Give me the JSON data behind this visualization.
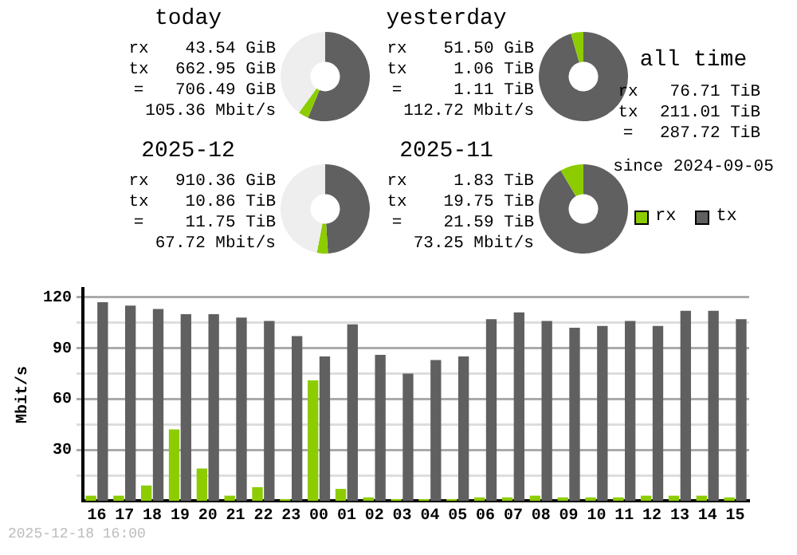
{
  "chart_data": [
    {
      "type": "donut",
      "title": "today",
      "categories": [
        null,
        null,
        null
      ],
      "values": [
        56.3,
        3.7,
        40
      ],
      "colors": [
        "#606060",
        "#8ccc00",
        "#eeeeee"
      ],
      "legend": false,
      "annotations": [
        "rx 43.54 GiB",
        "tx 662.95 GiB",
        "= 706.49 GiB",
        "105.36 Mbit/s"
      ]
    },
    {
      "type": "donut",
      "title": "yesterday",
      "categories": [
        null,
        null
      ],
      "values": [
        95.5,
        4.5
      ],
      "colors": [
        "#606060",
        "#8ccc00"
      ],
      "legend": false,
      "annotations": [
        "rx 51.50 GiB",
        "tx 1.06 TiB",
        "= 1.11 TiB",
        "112.72 Mbit/s"
      ]
    },
    {
      "type": "donut",
      "title": "2025-12",
      "categories": [
        null,
        null,
        null
      ],
      "values": [
        49,
        4,
        47
      ],
      "colors": [
        "#606060",
        "#8ccc00",
        "#eeeeee"
      ],
      "legend": false,
      "annotations": [
        "rx 910.36 GiB",
        "tx 10.86 TiB",
        "= 11.75 TiB",
        "67.72 Mbit/s"
      ]
    },
    {
      "type": "donut",
      "title": "2025-11",
      "categories": [
        null,
        null
      ],
      "values": [
        91.5,
        8.5
      ],
      "colors": [
        "#606060",
        "#8ccc00"
      ],
      "legend": false,
      "annotations": [
        "rx 1.83 TiB",
        "tx 19.75 TiB",
        "= 21.59 TiB",
        "73.25 Mbit/s"
      ]
    },
    {
      "type": "other",
      "title": "all time",
      "annotations": [
        "rx 76.71 TiB",
        "tx 211.01 TiB",
        "= 287.72 TiB",
        "since 2024-09-05"
      ]
    },
    {
      "type": "bar",
      "ylabel": "Mbit/s",
      "categories": [
        "16",
        "17",
        "18",
        "19",
        "20",
        "21",
        "22",
        "23",
        "00",
        "01",
        "02",
        "03",
        "04",
        "05",
        "06",
        "07",
        "08",
        "09",
        "10",
        "11",
        "12",
        "13",
        "14",
        "15"
      ],
      "series": [
        {
          "name": "rx",
          "color": "#8ccc00",
          "values": [
            3,
            3,
            9,
            42,
            19,
            3,
            8,
            1,
            71,
            7,
            2,
            1,
            1,
            1,
            2,
            2,
            3,
            2,
            2,
            2,
            3,
            3,
            3,
            2
          ]
        },
        {
          "name": "tx",
          "color": "#606060",
          "values": [
            117,
            115,
            113,
            110,
            110,
            108,
            106,
            97,
            85,
            104,
            86,
            75,
            83,
            85,
            107,
            111,
            106,
            102,
            103,
            106,
            103,
            112,
            112,
            107
          ]
        }
      ],
      "ylim": [
        0,
        125
      ],
      "yticks": [
        {
          "value": 15,
          "label": null
        },
        30,
        {
          "value": 45,
          "label": null
        },
        60,
        {
          "value": 75,
          "label": null
        },
        90,
        {
          "value": 105,
          "label": null
        },
        120
      ],
      "grid": "y",
      "legend": "top right",
      "annotations": [
        "2025-12-18 16:00"
      ]
    }
  ]
}
